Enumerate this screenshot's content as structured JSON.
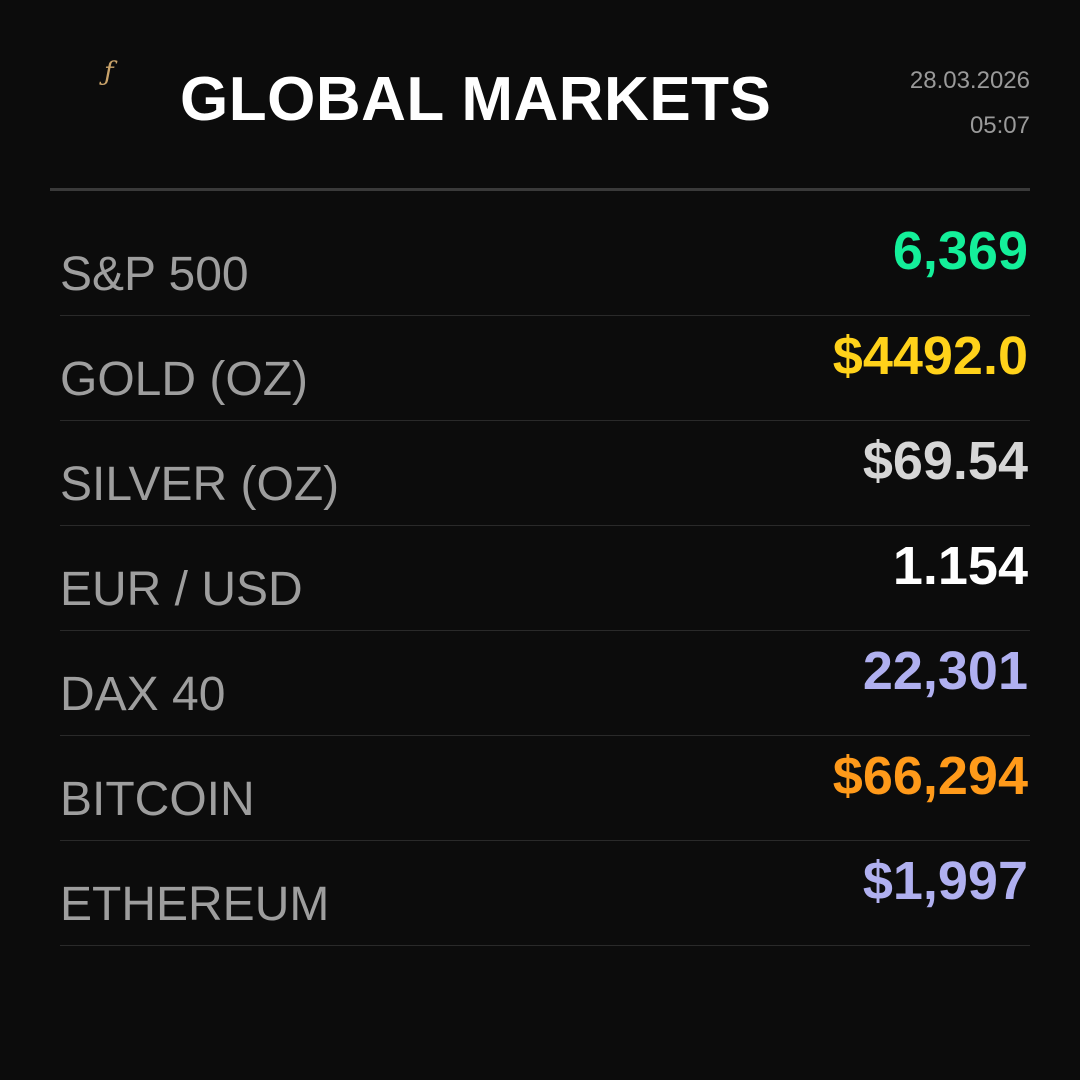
{
  "header": {
    "logo_glyph": "ƒ",
    "title": "GLOBAL MARKETS",
    "date": "28.03.2026",
    "time": "05:07"
  },
  "markets": [
    {
      "label": "S&P 500",
      "value": "6,369",
      "color": "#14f09a"
    },
    {
      "label": "GOLD (OZ)",
      "value": "$4492.0",
      "color": "#ffd21a"
    },
    {
      "label": "SILVER (OZ)",
      "value": "$69.54",
      "color": "#d6d6d6"
    },
    {
      "label": "EUR / USD",
      "value": "1.154",
      "color": "#ffffff"
    },
    {
      "label": "DAX 40",
      "value": "22,301",
      "color": "#b0b0f0"
    },
    {
      "label": "BITCOIN",
      "value": "$66,294",
      "color": "#ff9a1a"
    },
    {
      "label": "ETHEREUM",
      "value": "$1,997",
      "color": "#b0b0f0"
    }
  ]
}
